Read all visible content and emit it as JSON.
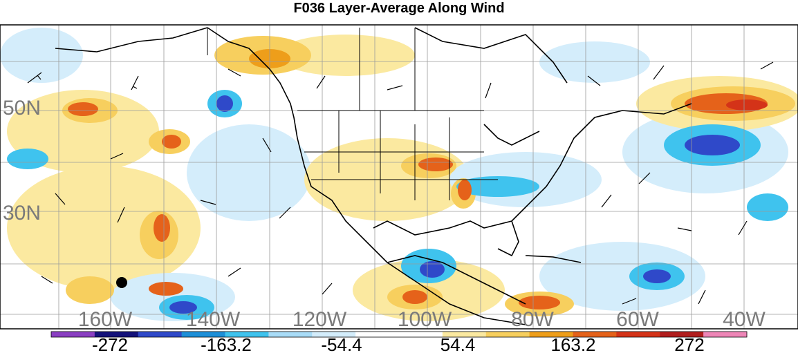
{
  "title": "F036 Layer-Average Along Wind",
  "lat_labels": [
    "50N",
    "30N"
  ],
  "lon_labels": [
    "160W",
    "140W",
    "120W",
    "100W",
    "80W",
    "60W",
    "40W"
  ],
  "colorbar": {
    "colors": [
      "#8a3fc2",
      "#14127a",
      "#2f49c9",
      "#1d8fd8",
      "#3fc3ee",
      "#a9dcf7",
      "#d4edfb",
      "#ffffff",
      "#ffffff",
      "#fbe9a0",
      "#f7cf5e",
      "#ee9e1a",
      "#e5621a",
      "#d43318",
      "#b11d1d",
      "#ee86b7"
    ],
    "tick_labels": [
      "-272",
      "-163.2",
      "-54.4",
      "54.4",
      "163.2",
      "272"
    ]
  }
}
